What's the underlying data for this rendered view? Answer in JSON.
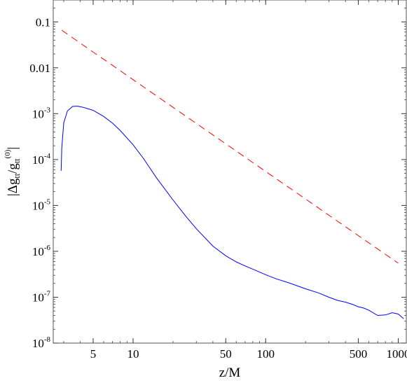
{
  "chart_data": {
    "type": "line",
    "xlabel": "z/M",
    "ylabel": "|Δg_tt / g_tt^(0)|",
    "xscale": "log",
    "yscale": "log",
    "xlim": [
      2.5,
      1150
    ],
    "ylim": [
      1e-08,
      0.3
    ],
    "grid": false,
    "legend": "none",
    "x_ticks": [
      {
        "value": 5,
        "label": "5"
      },
      {
        "value": 10,
        "label": "10"
      },
      {
        "value": 50,
        "label": "50"
      },
      {
        "value": 100,
        "label": "100"
      },
      {
        "value": 500,
        "label": "500"
      },
      {
        "value": 1000,
        "label": "1000"
      }
    ],
    "y_ticks": [
      {
        "value": 0.1,
        "label": "0.1"
      },
      {
        "value": 0.01,
        "label": "0.01"
      },
      {
        "value": 0.001,
        "mantissa": "10",
        "exponent": "-3"
      },
      {
        "value": 0.0001,
        "mantissa": "10",
        "exponent": "-4"
      },
      {
        "value": 1e-05,
        "mantissa": "10",
        "exponent": "-5"
      },
      {
        "value": 1e-06,
        "mantissa": "10",
        "exponent": "-6"
      },
      {
        "value": 1e-07,
        "mantissa": "10",
        "exponent": "-7"
      },
      {
        "value": 1e-08,
        "mantissa": "10",
        "exponent": "-8"
      }
    ],
    "series": [
      {
        "color": "#ff0000",
        "style": "dashed",
        "x": [
          2.9,
          3.5,
          5,
          7,
          10,
          20,
          50,
          100,
          200,
          500,
          1000
        ],
        "y": [
          0.066,
          0.045,
          0.022,
          0.0113,
          0.0055,
          0.00138,
          0.00022,
          5.5e-05,
          1.38e-05,
          2.2e-06,
          5.5e-07
        ]
      },
      {
        "color": "#0000ff",
        "style": "solid",
        "x": [
          2.87,
          2.9,
          3.0,
          3.2,
          3.5,
          3.8,
          4.2,
          5,
          6,
          7,
          8,
          10,
          12,
          15,
          20,
          25,
          30,
          40,
          50,
          60,
          70,
          80,
          100,
          120,
          150,
          200,
          250,
          300,
          350,
          400,
          450,
          500,
          550,
          600,
          700,
          800,
          900,
          1000,
          1100
        ],
        "y": [
          5.7e-05,
          0.00018,
          0.00063,
          0.00115,
          0.00144,
          0.00146,
          0.00138,
          0.00118,
          0.00087,
          0.00062,
          0.00043,
          0.00021,
          0.000105,
          4e-05,
          1.32e-05,
          5.8e-06,
          3.1e-06,
          1.3e-06,
          8e-07,
          5.9e-07,
          4.8e-07,
          4.08e-07,
          3.1e-07,
          2.52e-07,
          2.05e-07,
          1.52e-07,
          1.24e-07,
          1e-07,
          8.5e-08,
          7.8e-08,
          7e-08,
          6.2e-08,
          5.8e-08,
          5.2e-08,
          4e-08,
          4.1e-08,
          4.6e-08,
          4.3e-08,
          3.4e-08
        ]
      }
    ]
  }
}
